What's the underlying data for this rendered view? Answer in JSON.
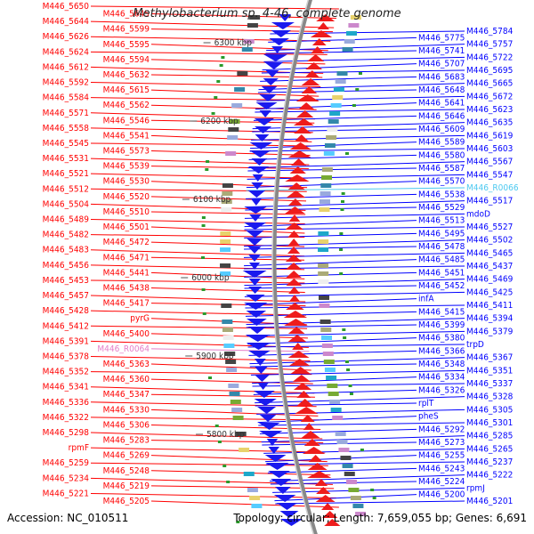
{
  "title": "Methylobacterium sp. 4-46, complete genome",
  "footer": {
    "accession": "Accession: NC_010511",
    "topology": "Topology: circular; Length: 7,659,055 bp; Genes: 6,691"
  },
  "colors": {
    "left_labels": "#ff0000",
    "right_labels": "#0000ff",
    "rna_left": "#e57ec8",
    "rna_right": "#4dc9f0",
    "forward_genes": "#ee1c1c",
    "reverse_genes": "#1a1aee",
    "backbone": "#888888"
  },
  "scale_ticks": [
    "6300 kbp",
    "6200 kbp",
    "6100 kbp",
    "6000 kbp",
    "5900 kbp",
    "5800 kbp"
  ],
  "left_labels": [
    "M446_5650",
    "M446_5645",
    "M446_5644",
    "M446_5599",
    "M446_5626",
    "M446_5595",
    "M446_5624",
    "M446_5594",
    "M446_5612",
    "M446_5632",
    "M446_5592",
    "M446_5615",
    "M446_5584",
    "M446_5562",
    "M446_5571",
    "M446_5546",
    "M446_5558",
    "M446_5541",
    "M446_5545",
    "M446_5573",
    "M446_5531",
    "M446_5539",
    "M446_5521",
    "M446_5530",
    "M446_5512",
    "M446_5520",
    "M446_5504",
    "M446_5510",
    "M446_5489",
    "M446_5501",
    "M446_5482",
    "M446_5472",
    "M446_5483",
    "M446_5471",
    "M446_5456",
    "M446_5441",
    "M446_5453",
    "M446_5438",
    "M446_5457",
    "M446_5417",
    "M446_5428",
    "pyrG",
    "M446_5412",
    "M446_5400",
    "M446_5391",
    "M446_R0064",
    "M446_5378",
    "M446_5363",
    "M446_5352",
    "M446_5360",
    "M446_5341",
    "M446_5347",
    "M446_5336",
    "M446_5330",
    "M446_5322",
    "M446_5306",
    "M446_5298",
    "M446_5283",
    "rpmF",
    "M446_5269",
    "M446_5259",
    "M446_5248",
    "M446_5234",
    "M446_5219",
    "M446_5221",
    "M446_5205"
  ],
  "right_labels": [
    "M446_5784",
    "M446_5775",
    "M446_5757",
    "M446_5741",
    "M446_5722",
    "M446_5707",
    "M446_5695",
    "M446_5683",
    "M446_5665",
    "M446_5648",
    "M446_5672",
    "M446_5641",
    "M446_5623",
    "M446_5646",
    "M446_5635",
    "M446_5609",
    "M446_5619",
    "M446_5589",
    "M446_5603",
    "M446_5580",
    "M446_5567",
    "M446_5587",
    "M446_5547",
    "M446_5570",
    "M446_R0066",
    "M446_5538",
    "M446_5517",
    "M446_5529",
    "mdoD",
    "M446_5513",
    "M446_5527",
    "M446_5495",
    "M446_5502",
    "M446_5478",
    "M446_5465",
    "M446_5485",
    "M446_5437",
    "M446_5451",
    "M446_5469",
    "M446_5452",
    "M446_5425",
    "infA",
    "M446_5411",
    "M446_5415",
    "M446_5394",
    "M446_5399",
    "M446_5379",
    "M446_5380",
    "trpD",
    "M446_5366",
    "M446_5367",
    "M446_5348",
    "M446_5351",
    "M446_5334",
    "M446_5337",
    "M446_5326",
    "M446_5328",
    "rplT",
    "M446_5305",
    "pheS",
    "M446_5301",
    "M446_5292",
    "M446_5285",
    "M446_5273",
    "M446_5265",
    "M446_5255",
    "M446_5237",
    "M446_5243",
    "M446_5222",
    "M446_5224",
    "rpmJ",
    "M446_5200",
    "M446_5201"
  ]
}
